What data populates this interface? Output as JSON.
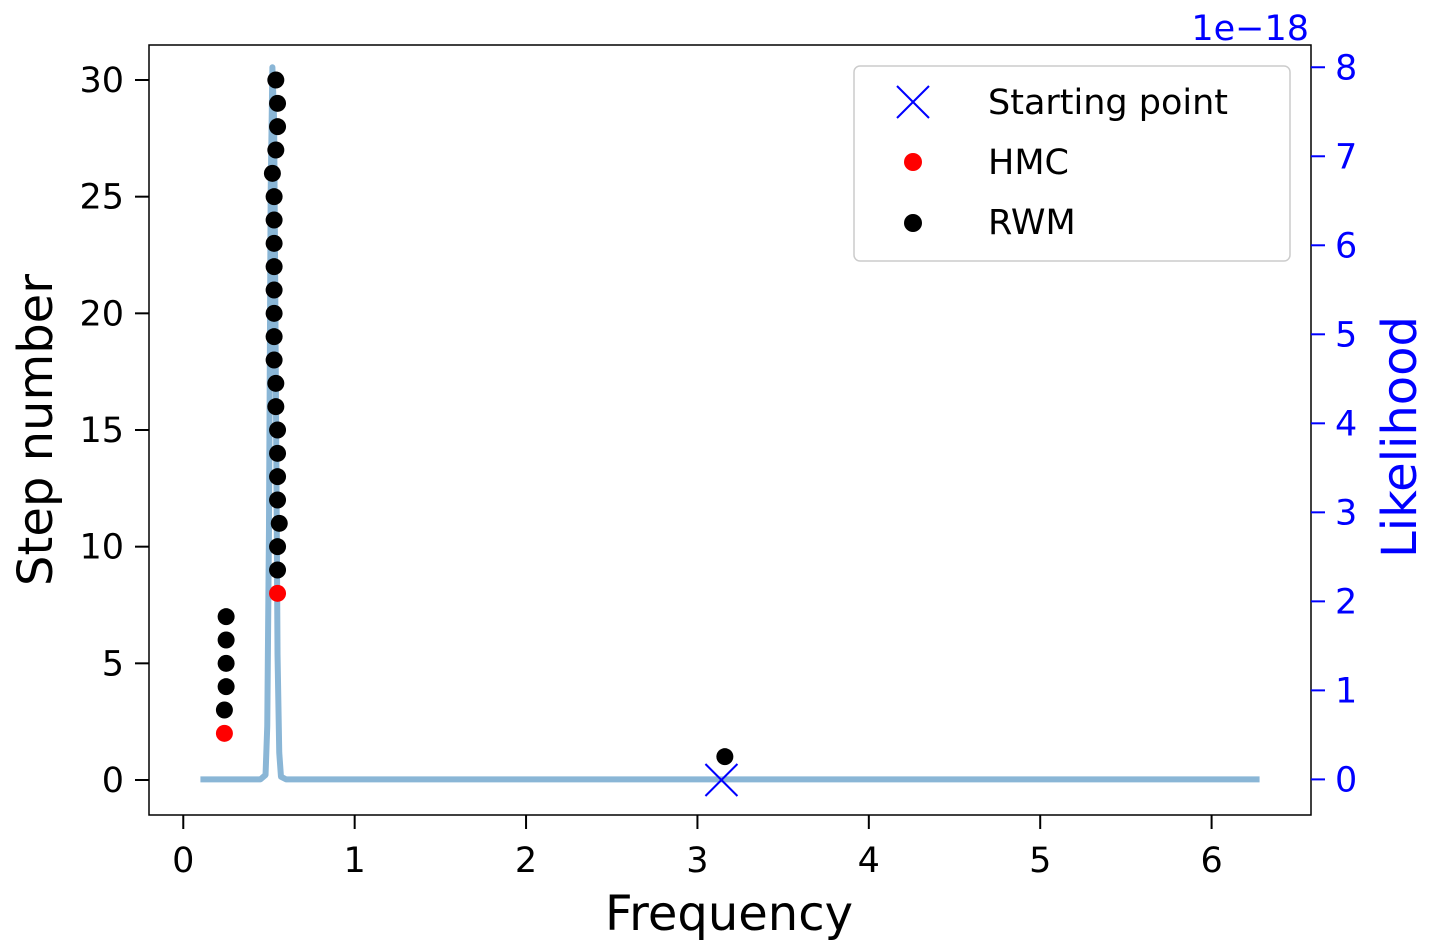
{
  "chart_data": {
    "type": "scatter",
    "xlabel": "Frequency",
    "ylabel": "Step number",
    "y2label": "Likelihood",
    "y2_offset_text": "1e−18",
    "xlim": [
      -0.2,
      6.58
    ],
    "ylim": [
      -1.5,
      31.5
    ],
    "y2lim": [
      -0.4,
      8.25
    ],
    "x_ticks": [
      0,
      1,
      2,
      3,
      4,
      5,
      6
    ],
    "x_tick_labels": [
      "0",
      "1",
      "2",
      "3",
      "4",
      "5",
      "6"
    ],
    "y_ticks": [
      0,
      5,
      10,
      15,
      20,
      25,
      30
    ],
    "y_tick_labels": [
      "0",
      "5",
      "10",
      "15",
      "20",
      "25",
      "30"
    ],
    "y2_ticks": [
      0,
      1,
      2,
      3,
      4,
      5,
      6,
      7,
      8
    ],
    "y2_tick_labels": [
      "0",
      "1",
      "2",
      "3",
      "4",
      "5",
      "6",
      "7",
      "8"
    ],
    "grid": false,
    "legend_position": "top-right",
    "colors": {
      "starting_point": "#0000ff",
      "hmc": "#ff0000",
      "rwm": "#000000",
      "likelihood": "#8ab6d6",
      "right_axis": "#0000ff"
    },
    "series": [
      {
        "name": "Starting point",
        "marker": "x",
        "points": [
          [
            3.14,
            0
          ]
        ]
      },
      {
        "name": "HMC",
        "marker": "dot",
        "points": [
          [
            0.24,
            2
          ],
          [
            0.55,
            8
          ]
        ]
      },
      {
        "name": "RWM",
        "marker": "dot",
        "points": [
          [
            3.16,
            1
          ],
          [
            0.24,
            3
          ],
          [
            0.25,
            4
          ],
          [
            0.25,
            5
          ],
          [
            0.25,
            6
          ],
          [
            0.25,
            7
          ],
          [
            0.55,
            9
          ],
          [
            0.55,
            10
          ],
          [
            0.56,
            11
          ],
          [
            0.55,
            12
          ],
          [
            0.55,
            13
          ],
          [
            0.55,
            14
          ],
          [
            0.55,
            15
          ],
          [
            0.54,
            16
          ],
          [
            0.54,
            17
          ],
          [
            0.53,
            18
          ],
          [
            0.53,
            19
          ],
          [
            0.53,
            20
          ],
          [
            0.53,
            21
          ],
          [
            0.53,
            22
          ],
          [
            0.53,
            23
          ],
          [
            0.53,
            24
          ],
          [
            0.53,
            25
          ],
          [
            0.52,
            26
          ],
          [
            0.54,
            27
          ],
          [
            0.55,
            28
          ],
          [
            0.55,
            29
          ],
          [
            0.54,
            30
          ]
        ]
      }
    ],
    "likelihood_curve": {
      "axis": "right",
      "x": [
        0.1,
        0.45,
        0.48,
        0.49,
        0.5,
        0.51,
        0.52,
        0.53,
        0.54,
        0.55,
        0.56,
        0.57,
        0.6,
        6.28
      ],
      "y": [
        0,
        0,
        0.05,
        0.6,
        2.8,
        6.6,
        8.0,
        7.4,
        4.5,
        1.4,
        0.3,
        0.03,
        0,
        0
      ]
    }
  }
}
